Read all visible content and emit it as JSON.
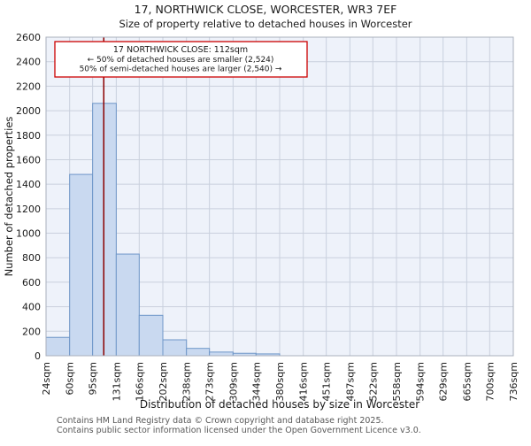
{
  "title": "17, NORTHWICK CLOSE, WORCESTER, WR3 7EF",
  "subtitle": "Size of property relative to detached houses in Worcester",
  "annotation": {
    "line1": "17 NORTHWICK CLOSE: 112sqm",
    "line2": "← 50% of detached houses are smaller (2,524)",
    "line3": "50% of semi-detached houses are larger (2,540) →"
  },
  "chart_data": {
    "type": "bar",
    "title": "17, NORTHWICK CLOSE, WORCESTER, WR3 7EF",
    "subtitle": "Size of property relative to detached houses in Worcester",
    "xlabel": "Distribution of detached houses by size in Worcester",
    "ylabel": "Number of detached properties",
    "bin_edges": [
      24,
      60,
      95,
      131,
      166,
      202,
      238,
      273,
      309,
      344,
      380,
      416,
      451,
      487,
      522,
      558,
      594,
      629,
      665,
      700,
      736
    ],
    "x_tick_labels": [
      "24sqm",
      "60sqm",
      "95sqm",
      "131sqm",
      "166sqm",
      "202sqm",
      "238sqm",
      "273sqm",
      "309sqm",
      "344sqm",
      "380sqm",
      "416sqm",
      "451sqm",
      "487sqm",
      "522sqm",
      "558sqm",
      "594sqm",
      "629sqm",
      "665sqm",
      "700sqm",
      "736sqm"
    ],
    "values": [
      150,
      1480,
      2060,
      830,
      330,
      130,
      60,
      30,
      20,
      15,
      0,
      0,
      0,
      0,
      0,
      0,
      0,
      0,
      0,
      0
    ],
    "ylim": [
      0,
      2600
    ],
    "y_ticks": [
      0,
      200,
      400,
      600,
      800,
      1000,
      1200,
      1400,
      1600,
      1800,
      2000,
      2200,
      2400,
      2600
    ],
    "marker_value": 112,
    "grid": true,
    "colors": {
      "bar_fill": "#c9d9f0",
      "bar_edge": "#6e96c8",
      "marker": "#8b0000",
      "annotation_border": "#cc0000",
      "grid": "#c9d0dd",
      "plot_bg": "#eef2fa",
      "spine": "#aab0bc"
    }
  },
  "footer": {
    "line1": "Contains HM Land Registry data © Crown copyright and database right 2025.",
    "line2": "Contains public sector information licensed under the Open Government Licence v3.0."
  }
}
